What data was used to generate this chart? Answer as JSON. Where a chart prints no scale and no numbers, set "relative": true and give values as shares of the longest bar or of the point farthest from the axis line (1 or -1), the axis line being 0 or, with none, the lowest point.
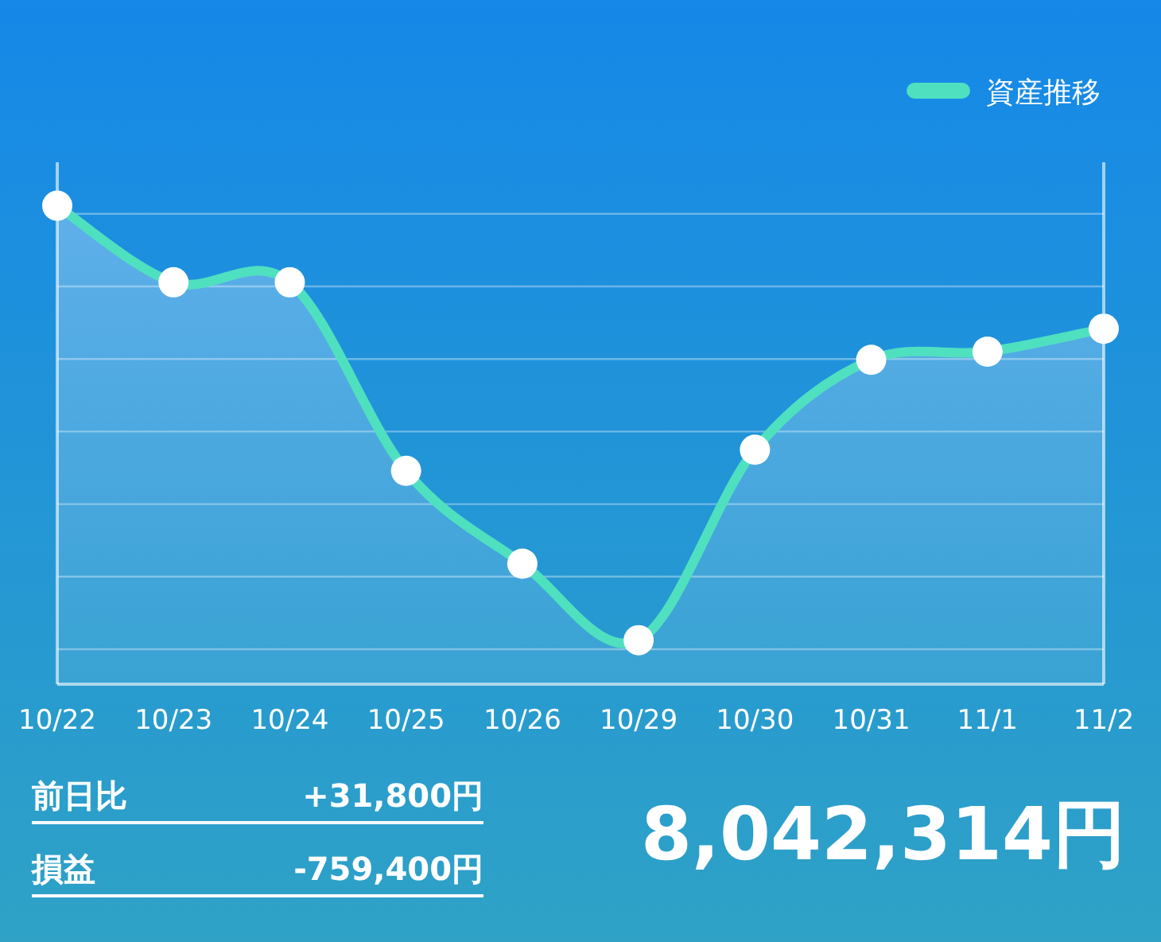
{
  "chart_data": {
    "type": "area",
    "relative": true,
    "grid": "y",
    "legend": "top right",
    "marker": "circle",
    "categories": [
      "10/22",
      "10/23",
      "10/24",
      "10/25",
      "10/26",
      "10/29",
      "10/30",
      "10/31",
      "11/1",
      "11/2"
    ],
    "series": [
      {
        "name": "資産推移",
        "color": "#4fe0c0",
        "values": [
          1,
          0.84,
          0.84,
          0.446,
          0.252,
          0.092,
          0.49,
          0.678,
          0.695,
          0.743
        ]
      }
    ],
    "annotations": [
      "前日比",
      "+31,800円",
      "損益",
      "-759,400円",
      "8,042,314円"
    ]
  }
}
